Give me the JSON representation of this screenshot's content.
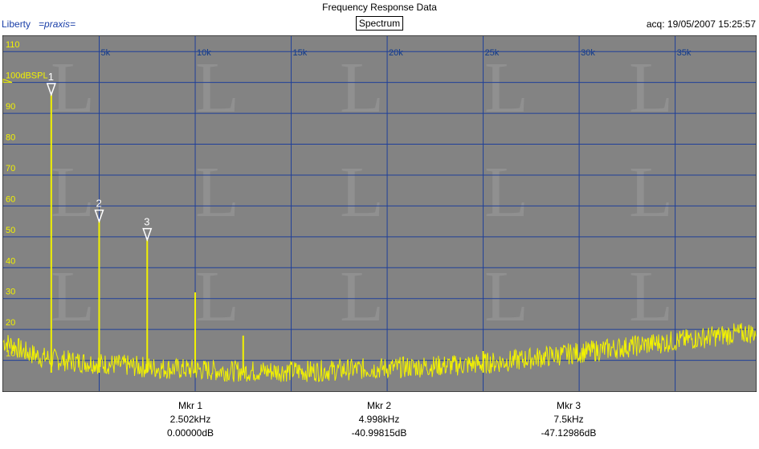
{
  "header": {
    "title": "Frequency Response Data",
    "brand_name": "Liberty",
    "brand_product": "=praxis=",
    "view_label": "Spectrum",
    "acq_label": "acq: 19/05/2007 15:25:57"
  },
  "colors": {
    "plot_bg": "#838383",
    "grid": "#1f3f99",
    "trace": "#f2f200",
    "axis_text": "#0f3a8a",
    "y_text": "#f2f200"
  },
  "markers": [
    {
      "label": "Mkr 1",
      "freq": "2.502kHz",
      "level": "0.00000dB"
    },
    {
      "label": "Mkr 2",
      "freq": "4.998kHz",
      "level": "-40.99815dB"
    },
    {
      "label": "Mkr 3",
      "freq": "7.5kHz",
      "level": "-47.12986dB"
    }
  ],
  "chart_data": {
    "type": "line",
    "title": "Frequency Response Data",
    "xlabel": "",
    "ylabel": "",
    "xlim": [
      0,
      39200
    ],
    "ylim": [
      0,
      115
    ],
    "x_ticks": [
      5000,
      10000,
      15000,
      20000,
      25000,
      30000,
      35000
    ],
    "x_tick_labels": [
      "5k",
      "10k",
      "15k",
      "20k",
      "25k",
      "30k",
      "35k"
    ],
    "y_ticks": [
      10,
      20,
      30,
      40,
      50,
      60,
      70,
      80,
      90,
      100,
      110
    ],
    "y_tick_labels": [
      "10",
      "20",
      "30",
      "40",
      "50",
      "60",
      "70",
      "80",
      "90",
      "100dBSPL",
      "110"
    ],
    "grid": true,
    "series": [
      {
        "values_note": "noise floor trace",
        "x": [
          0,
          500,
          1000,
          1500,
          2000,
          3000,
          4000,
          5000,
          6000,
          7000,
          8000,
          10000,
          12000,
          14000,
          16000,
          18000,
          20000,
          22000,
          24000,
          26000,
          28000,
          30000,
          32000,
          34000,
          36000,
          38000,
          39200
        ],
        "y": [
          16,
          15,
          13,
          12,
          11,
          10,
          9.5,
          9,
          8.5,
          8,
          7.5,
          7,
          6.5,
          6.5,
          6.5,
          7,
          7.5,
          8,
          8.5,
          9.5,
          11,
          12.5,
          14,
          15.5,
          17,
          18.5,
          19
        ]
      }
    ],
    "spikes": [
      {
        "marker": "1",
        "x": 2502,
        "y": 96
      },
      {
        "marker": "2",
        "x": 4998,
        "y": 55
      },
      {
        "marker": "3",
        "x": 7500,
        "y": 49
      },
      {
        "marker": "",
        "x": 10000,
        "y": 32
      },
      {
        "marker": "",
        "x": 12500,
        "y": 18
      },
      {
        "marker": "",
        "x": 25000,
        "y": 13
      }
    ]
  }
}
